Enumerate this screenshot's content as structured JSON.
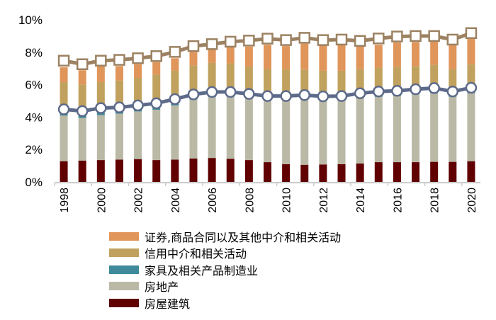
{
  "chart_data": {
    "type": "bar",
    "stacked": true,
    "categories": [
      "1998",
      "1999",
      "2000",
      "2001",
      "2002",
      "2003",
      "2004",
      "2005",
      "2006",
      "2007",
      "2008",
      "2009",
      "2010",
      "2011",
      "2012",
      "2013",
      "2014",
      "2015",
      "2016",
      "2017",
      "2018",
      "2019",
      "2020"
    ],
    "x_tick_labels": [
      "1998",
      "2000",
      "2002",
      "2004",
      "2006",
      "2008",
      "2010",
      "2012",
      "2014",
      "2016",
      "2018",
      "2020"
    ],
    "y_ticks": [
      "0%",
      "2%",
      "4%",
      "6%",
      "8%",
      "10%"
    ],
    "ylim": [
      0,
      10
    ],
    "grid": false,
    "legend_position": "bottom",
    "series": [
      {
        "name": "房屋建筑",
        "color": "#600000",
        "values": [
          1.28,
          1.32,
          1.35,
          1.38,
          1.41,
          1.35,
          1.38,
          1.45,
          1.48,
          1.43,
          1.35,
          1.22,
          1.1,
          1.06,
          1.08,
          1.1,
          1.14,
          1.22,
          1.22,
          1.22,
          1.24,
          1.24,
          1.28
        ]
      },
      {
        "name": "房地产",
        "color": "#BAB9A6",
        "values": [
          2.81,
          2.62,
          2.77,
          2.83,
          2.94,
          3.1,
          3.34,
          3.63,
          3.75,
          3.82,
          3.79,
          3.82,
          3.94,
          4.02,
          3.96,
          3.94,
          4.04,
          4.03,
          4.08,
          4.18,
          4.23,
          4.01,
          4.19
        ]
      },
      {
        "name": "家具及相关产品制造业",
        "color": "#3E8A9A",
        "values": [
          0.15,
          0.15,
          0.15,
          0.12,
          0.12,
          0.1,
          0.1,
          0.08,
          0.08,
          0.08,
          0.08,
          0.08,
          0.08,
          0.08,
          0.08,
          0.08,
          0.08,
          0.08,
          0.08,
          0.08,
          0.08,
          0.08,
          0.08
        ]
      },
      {
        "name": "信用中介和相关活动",
        "color": "#C1A15E",
        "values": [
          1.92,
          1.92,
          1.89,
          1.93,
          1.95,
          2.07,
          2.04,
          2.03,
          2.03,
          1.98,
          1.9,
          1.85,
          1.84,
          1.77,
          1.74,
          1.74,
          1.7,
          1.72,
          1.71,
          1.67,
          1.67,
          1.64,
          1.71
        ]
      },
      {
        "name": "证券,商品合同以及其他中介和相关活动",
        "color": "#E0955A",
        "values": [
          0.91,
          0.88,
          0.96,
          0.89,
          0.84,
          0.77,
          0.77,
          0.83,
          0.83,
          1.0,
          1.23,
          1.49,
          1.42,
          1.6,
          1.6,
          1.6,
          1.42,
          1.41,
          1.51,
          1.48,
          1.45,
          1.49,
          1.56
        ]
      }
    ],
    "lines": [
      {
        "marker": "square",
        "color": "#9C8262",
        "values": [
          7.48,
          7.26,
          7.48,
          7.53,
          7.63,
          7.76,
          8.02,
          8.38,
          8.5,
          8.65,
          8.72,
          8.84,
          8.75,
          8.89,
          8.75,
          8.78,
          8.7,
          8.85,
          8.97,
          9.0,
          9.0,
          8.78,
          9.18
        ]
      },
      {
        "marker": "circle",
        "color": "#5D6A8A",
        "values": [
          4.48,
          4.37,
          4.56,
          4.6,
          4.72,
          4.85,
          5.11,
          5.4,
          5.55,
          5.55,
          5.43,
          5.3,
          5.3,
          5.36,
          5.28,
          5.3,
          5.47,
          5.58,
          5.62,
          5.72,
          5.79,
          5.58,
          5.81
        ]
      }
    ],
    "legend_order": [
      4,
      3,
      2,
      1,
      0
    ]
  }
}
